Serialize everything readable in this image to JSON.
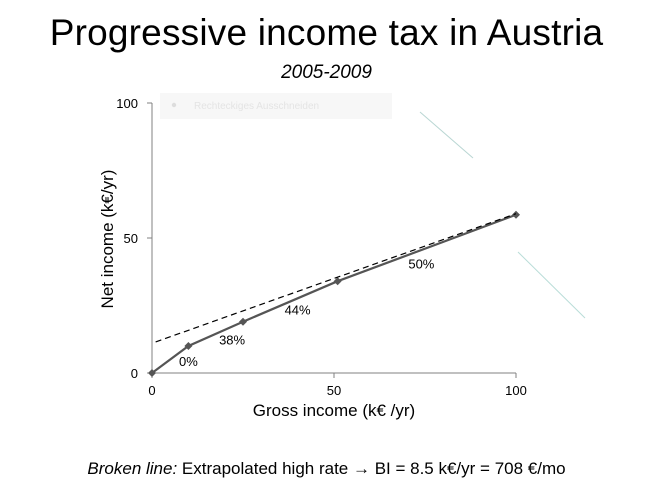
{
  "slide": {
    "title": "Progressive income tax in Austria",
    "subtitle": "2005-2009",
    "footer": {
      "italic_part": "Broken line:",
      "rest_part": " Extrapolated high rate → BI = 8.5 k€/yr = 708 €/mo"
    },
    "faint_text": "Rechteckiges Ausschneiden"
  },
  "chart_data": {
    "type": "line",
    "title": "Progressive income tax in Austria",
    "subtitle": "2005-2009",
    "xlabel": "Gross income (k€ /yr)",
    "ylabel": "Net income (k€/yr)",
    "xlim": [
      0,
      100
    ],
    "ylim": [
      0,
      100
    ],
    "x_ticks": [
      0,
      50,
      100
    ],
    "y_ticks": [
      0,
      50,
      100
    ],
    "grid": false,
    "series": [
      {
        "style": "solid",
        "color": "#555555",
        "markers": "diamond",
        "points": [
          [
            0,
            0
          ],
          [
            10,
            10
          ],
          [
            25,
            19
          ],
          [
            51,
            34
          ],
          [
            100,
            58.6
          ]
        ]
      },
      {
        "style": "dashed",
        "color": "#000000",
        "points": [
          [
            1,
            11.5
          ],
          [
            100,
            59
          ]
        ]
      }
    ],
    "annotations": [
      {
        "text": "0%",
        "x": 10,
        "y": 4.5
      },
      {
        "text": "38%",
        "x": 22,
        "y": 12.5
      },
      {
        "text": "44%",
        "x": 40,
        "y": 23.5
      },
      {
        "text": "50%",
        "x": 74,
        "y": 40.5
      }
    ]
  }
}
